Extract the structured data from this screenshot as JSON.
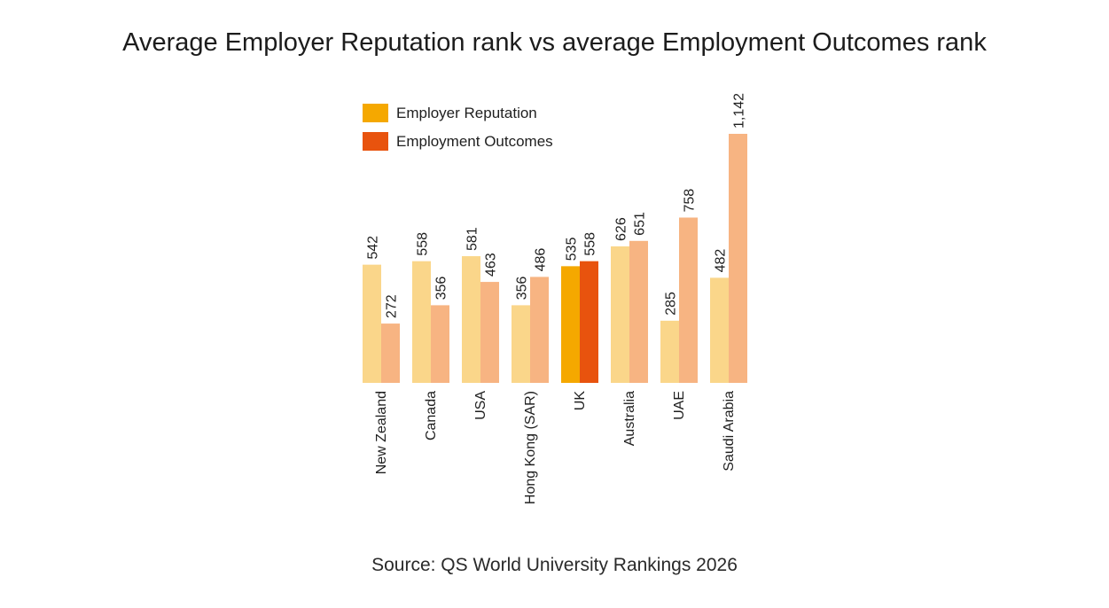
{
  "title": "Average Employer Reputation rank vs average Employment Outcomes rank",
  "source": "Source: QS World University Rankings 2026",
  "chart_data": {
    "type": "bar",
    "title": "Average Employer Reputation rank vs average Employment Outcomes rank",
    "xlabel": "",
    "ylabel": "",
    "ylim": [
      0,
      1142
    ],
    "legend_position": "top-left",
    "categories": [
      "New Zealand",
      "Canada",
      "USA",
      "Hong Kong (SAR)",
      "UK",
      "Australia",
      "UAE",
      "Saudi Arabia"
    ],
    "highlight_category": "UK",
    "series": [
      {
        "name": "Employer Reputation",
        "values": [
          542,
          558,
          581,
          356,
          535,
          626,
          285,
          482
        ],
        "labels": [
          "542",
          "558",
          "581",
          "356",
          "535",
          "626",
          "285",
          "482"
        ],
        "color": "#f5a800",
        "muted_color": "#fad68a"
      },
      {
        "name": "Employment Outcomes",
        "values": [
          272,
          356,
          463,
          486,
          558,
          651,
          758,
          1142
        ],
        "labels": [
          "272",
          "356",
          "463",
          "486",
          "558",
          "651",
          "758",
          "1,142"
        ],
        "color": "#e8530e",
        "muted_color": "#f7b482"
      }
    ]
  }
}
